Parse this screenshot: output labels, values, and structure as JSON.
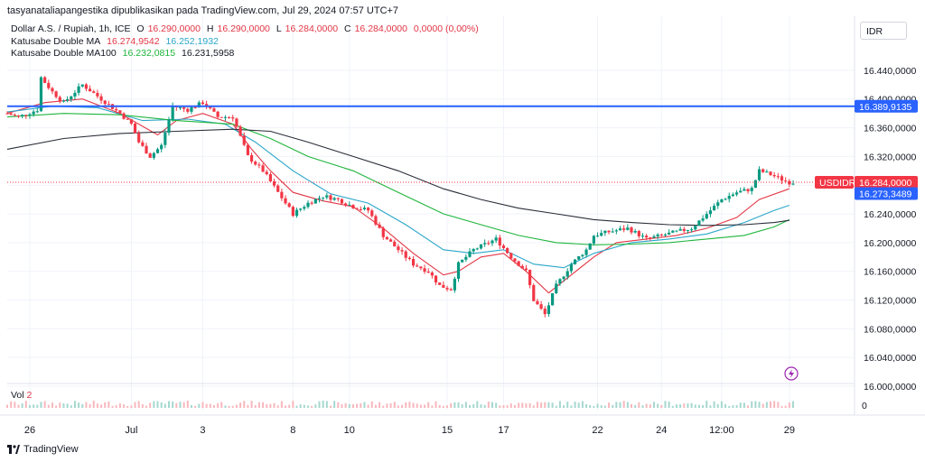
{
  "header": {
    "publish_line": "tasyanataliapangestika dipublikasikan pada TradingView.com, Jul 29, 2024 07:57 UTC+7"
  },
  "legend": {
    "symbol": "Dollar A.S. / Rupiah, 1h, ICE",
    "open_label": "O",
    "open": "16.290,0000",
    "high_label": "H",
    "high": "16.290,0000",
    "low_label": "L",
    "low": "16.284,0000",
    "close_label": "C",
    "close": "16.284,0000",
    "change": "0,0000 (0,00%)",
    "ma1_name": "Katusabe Double MA",
    "ma1_v1": "16.274,9542",
    "ma1_v2": "16.252,1932",
    "ma2_name": "Katusabe Double MA100",
    "ma2_v1": "16.232,0815",
    "ma2_v2": "16.231,5958"
  },
  "currency": "IDR",
  "volume": {
    "label": "Vol",
    "value": "2",
    "axis_zero": "0"
  },
  "footer": {
    "brand": "TradingView"
  },
  "colors": {
    "up": "#089981",
    "down": "#f23645",
    "ma_red": "#e23645",
    "ma_cyan": "#2aa6c9",
    "ma_green": "#1fb53c",
    "ma_dark": "#2a2e39",
    "blue_line": "#2962ff"
  },
  "chart_data": {
    "type": "line",
    "title": "Dollar A.S. / Rupiah, 1h, ICE",
    "y_ticks": [
      "16.440,0000",
      "16.400,0000",
      "16.360,0000",
      "16.320,0000",
      "16.280,0000",
      "16.240,0000",
      "16.200,0000",
      "16.160,0000",
      "16.120,0000",
      "16.080,0000",
      "16.040,0000",
      "16.000,0000"
    ],
    "y_tick_values": [
      16440,
      16400,
      16360,
      16320,
      16280,
      16240,
      16200,
      16160,
      16120,
      16080,
      16040,
      16000
    ],
    "ylim": [
      16000,
      16460
    ],
    "x_ticks": [
      "26",
      "Jul",
      "3",
      "8",
      "10",
      "15",
      "17",
      "22",
      "24",
      "12:00",
      "29"
    ],
    "x_tick_index": [
      6,
      33,
      52,
      76,
      91,
      117,
      132,
      157,
      174,
      190,
      208
    ],
    "x_count": 210,
    "price_labels": [
      {
        "text": "16.389,9135",
        "value": 16389.9135,
        "kind": "hline"
      },
      {
        "text": "USDIDR",
        "value": 16284,
        "kind": "symbol"
      },
      {
        "text": "16.284,0000",
        "value": 16284,
        "kind": "last"
      },
      {
        "text": "16.273,3489",
        "value": 16273.3489,
        "kind": "ma"
      }
    ],
    "horizontal_line": 16389.9135,
    "last_price": 16284,
    "close_path": [
      [
        0,
        16380
      ],
      [
        3,
        16375
      ],
      [
        8,
        16385
      ],
      [
        9,
        16430
      ],
      [
        12,
        16410
      ],
      [
        15,
        16395
      ],
      [
        20,
        16420
      ],
      [
        25,
        16400
      ],
      [
        30,
        16380
      ],
      [
        33,
        16365
      ],
      [
        35,
        16340
      ],
      [
        38,
        16320
      ],
      [
        41,
        16335
      ],
      [
        44,
        16390
      ],
      [
        48,
        16385
      ],
      [
        52,
        16395
      ],
      [
        56,
        16375
      ],
      [
        60,
        16375
      ],
      [
        64,
        16320
      ],
      [
        68,
        16300
      ],
      [
        72,
        16270
      ],
      [
        76,
        16240
      ],
      [
        80,
        16255
      ],
      [
        84,
        16265
      ],
      [
        88,
        16260
      ],
      [
        92,
        16250
      ],
      [
        96,
        16245
      ],
      [
        100,
        16210
      ],
      [
        104,
        16190
      ],
      [
        108,
        16170
      ],
      [
        112,
        16160
      ],
      [
        115,
        16140
      ],
      [
        118,
        16135
      ],
      [
        120,
        16170
      ],
      [
        124,
        16190
      ],
      [
        128,
        16200
      ],
      [
        130,
        16205
      ],
      [
        134,
        16180
      ],
      [
        138,
        16160
      ],
      [
        140,
        16120
      ],
      [
        143,
        16100
      ],
      [
        146,
        16140
      ],
      [
        150,
        16170
      ],
      [
        154,
        16190
      ],
      [
        156,
        16210
      ],
      [
        160,
        16215
      ],
      [
        165,
        16220
      ],
      [
        170,
        16205
      ],
      [
        174,
        16210
      ],
      [
        178,
        16215
      ],
      [
        182,
        16220
      ],
      [
        186,
        16240
      ],
      [
        190,
        16260
      ],
      [
        194,
        16270
      ],
      [
        198,
        16275
      ],
      [
        200,
        16300
      ],
      [
        203,
        16295
      ],
      [
        206,
        16288
      ],
      [
        208,
        16284
      ]
    ],
    "series": [
      {
        "name": "Katusabe Double MA",
        "color_key": "ma_red",
        "values": [
          [
            0,
            16380
          ],
          [
            10,
            16395
          ],
          [
            20,
            16400
          ],
          [
            30,
            16380
          ],
          [
            40,
            16350
          ],
          [
            45,
            16370
          ],
          [
            52,
            16380
          ],
          [
            60,
            16365
          ],
          [
            65,
            16330
          ],
          [
            70,
            16300
          ],
          [
            76,
            16270
          ],
          [
            84,
            16258
          ],
          [
            92,
            16250
          ],
          [
            100,
            16220
          ],
          [
            108,
            16185
          ],
          [
            116,
            16155
          ],
          [
            120,
            16160
          ],
          [
            126,
            16180
          ],
          [
            132,
            16185
          ],
          [
            138,
            16160
          ],
          [
            144,
            16130
          ],
          [
            150,
            16155
          ],
          [
            156,
            16180
          ],
          [
            162,
            16200
          ],
          [
            170,
            16205
          ],
          [
            178,
            16210
          ],
          [
            186,
            16220
          ],
          [
            194,
            16235
          ],
          [
            200,
            16260
          ],
          [
            208,
            16275
          ]
        ]
      },
      {
        "name": "",
        "color_key": "ma_cyan",
        "values": [
          [
            0,
            16382
          ],
          [
            12,
            16390
          ],
          [
            24,
            16388
          ],
          [
            36,
            16370
          ],
          [
            48,
            16372
          ],
          [
            58,
            16365
          ],
          [
            66,
            16340
          ],
          [
            76,
            16300
          ],
          [
            86,
            16268
          ],
          [
            96,
            16255
          ],
          [
            106,
            16225
          ],
          [
            116,
            16190
          ],
          [
            124,
            16185
          ],
          [
            132,
            16190
          ],
          [
            140,
            16170
          ],
          [
            148,
            16165
          ],
          [
            156,
            16185
          ],
          [
            166,
            16200
          ],
          [
            176,
            16205
          ],
          [
            186,
            16212
          ],
          [
            196,
            16228
          ],
          [
            204,
            16245
          ],
          [
            208,
            16252
          ]
        ]
      },
      {
        "name": "Katusabe Double MA100",
        "color_key": "ma_green",
        "values": [
          [
            0,
            16375
          ],
          [
            15,
            16380
          ],
          [
            30,
            16378
          ],
          [
            45,
            16370
          ],
          [
            60,
            16365
          ],
          [
            70,
            16345
          ],
          [
            80,
            16320
          ],
          [
            92,
            16300
          ],
          [
            104,
            16270
          ],
          [
            116,
            16240
          ],
          [
            126,
            16225
          ],
          [
            136,
            16210
          ],
          [
            146,
            16200
          ],
          [
            156,
            16197
          ],
          [
            166,
            16198
          ],
          [
            176,
            16200
          ],
          [
            186,
            16205
          ],
          [
            196,
            16210
          ],
          [
            204,
            16222
          ],
          [
            208,
            16232
          ]
        ]
      },
      {
        "name": "",
        "color_key": "ma_dark",
        "values": [
          [
            0,
            16330
          ],
          [
            15,
            16345
          ],
          [
            30,
            16352
          ],
          [
            45,
            16355
          ],
          [
            60,
            16358
          ],
          [
            70,
            16355
          ],
          [
            80,
            16340
          ],
          [
            92,
            16320
          ],
          [
            104,
            16300
          ],
          [
            116,
            16275
          ],
          [
            126,
            16260
          ],
          [
            136,
            16248
          ],
          [
            146,
            16240
          ],
          [
            156,
            16232
          ],
          [
            166,
            16228
          ],
          [
            176,
            16225
          ],
          [
            186,
            16224
          ],
          [
            196,
            16225
          ],
          [
            204,
            16228
          ],
          [
            208,
            16231
          ]
        ]
      }
    ]
  }
}
